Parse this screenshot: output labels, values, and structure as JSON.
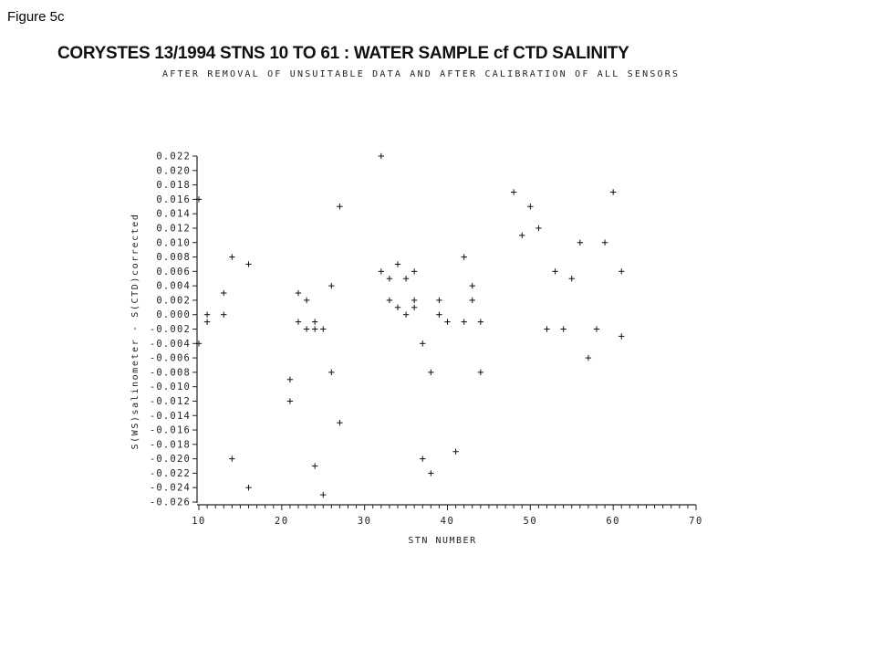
{
  "figure_label": "Figure 5c",
  "chart_data": {
    "type": "scatter",
    "title": "CORYSTES 13/1994   STNS 10 TO 61 :   WATER SAMPLE cf CTD SALINITY",
    "subtitle": "AFTER REMOVAL OF UNSUITABLE DATA AND AFTER CALIBRATION OF ALL SENSORS",
    "xlabel": "STN NUMBER",
    "ylabel": "S(WS)salinometer - S(CTD)corrected",
    "xlim": [
      10,
      70
    ],
    "ylim": [
      -0.026,
      0.022
    ],
    "xticks": [
      "10",
      "20",
      "30",
      "40",
      "50",
      "60",
      "70"
    ],
    "yticks": [
      "0.022",
      "0.020",
      "0.018",
      "0.016",
      "0.014",
      "0.012",
      "0.010",
      "0.008",
      "0.006",
      "0.004",
      "0.002",
      "0.000",
      "-0.002",
      "-0.004",
      "-0.006",
      "-0.008",
      "-0.010",
      "-0.012",
      "-0.014",
      "-0.016",
      "-0.018",
      "-0.020",
      "-0.022",
      "-0.024",
      "-0.026"
    ],
    "marker": "+",
    "grid": false,
    "points": [
      {
        "x": 10,
        "y": 0.016
      },
      {
        "x": 10,
        "y": -0.004
      },
      {
        "x": 11,
        "y": 0.0
      },
      {
        "x": 11,
        "y": -0.001
      },
      {
        "x": 13,
        "y": 0.003
      },
      {
        "x": 13,
        "y": 0.0
      },
      {
        "x": 14,
        "y": 0.008
      },
      {
        "x": 14,
        "y": -0.02
      },
      {
        "x": 16,
        "y": 0.007
      },
      {
        "x": 16,
        "y": -0.024
      },
      {
        "x": 21,
        "y": -0.009
      },
      {
        "x": 21,
        "y": -0.012
      },
      {
        "x": 22,
        "y": 0.003
      },
      {
        "x": 22,
        "y": -0.001
      },
      {
        "x": 23,
        "y": 0.002
      },
      {
        "x": 23,
        "y": -0.002
      },
      {
        "x": 24,
        "y": -0.001
      },
      {
        "x": 24,
        "y": -0.002
      },
      {
        "x": 24,
        "y": -0.021
      },
      {
        "x": 25,
        "y": -0.002
      },
      {
        "x": 25,
        "y": -0.025
      },
      {
        "x": 26,
        "y": 0.004
      },
      {
        "x": 26,
        "y": -0.008
      },
      {
        "x": 27,
        "y": 0.015
      },
      {
        "x": 27,
        "y": -0.015
      },
      {
        "x": 32,
        "y": 0.022
      },
      {
        "x": 32,
        "y": 0.006
      },
      {
        "x": 33,
        "y": 0.005
      },
      {
        "x": 33,
        "y": 0.002
      },
      {
        "x": 34,
        "y": 0.007
      },
      {
        "x": 34,
        "y": 0.001
      },
      {
        "x": 35,
        "y": 0.005
      },
      {
        "x": 35,
        "y": 0.0
      },
      {
        "x": 36,
        "y": 0.006
      },
      {
        "x": 36,
        "y": 0.002
      },
      {
        "x": 36,
        "y": 0.001
      },
      {
        "x": 37,
        "y": -0.004
      },
      {
        "x": 37,
        "y": -0.02
      },
      {
        "x": 38,
        "y": -0.008
      },
      {
        "x": 38,
        "y": -0.022
      },
      {
        "x": 39,
        "y": 0.002
      },
      {
        "x": 39,
        "y": 0.0
      },
      {
        "x": 40,
        "y": -0.001
      },
      {
        "x": 41,
        "y": -0.019
      },
      {
        "x": 42,
        "y": 0.008
      },
      {
        "x": 42,
        "y": -0.001
      },
      {
        "x": 43,
        "y": 0.004
      },
      {
        "x": 43,
        "y": 0.002
      },
      {
        "x": 44,
        "y": -0.001
      },
      {
        "x": 44,
        "y": -0.008
      },
      {
        "x": 48,
        "y": 0.017
      },
      {
        "x": 49,
        "y": 0.011
      },
      {
        "x": 50,
        "y": 0.015
      },
      {
        "x": 51,
        "y": 0.012
      },
      {
        "x": 52,
        "y": -0.002
      },
      {
        "x": 53,
        "y": 0.006
      },
      {
        "x": 54,
        "y": -0.002
      },
      {
        "x": 55,
        "y": 0.005
      },
      {
        "x": 56,
        "y": 0.01
      },
      {
        "x": 57,
        "y": -0.006
      },
      {
        "x": 58,
        "y": -0.002
      },
      {
        "x": 59,
        "y": 0.01
      },
      {
        "x": 60,
        "y": 0.017
      },
      {
        "x": 61,
        "y": 0.006
      },
      {
        "x": 61,
        "y": -0.003
      }
    ]
  }
}
